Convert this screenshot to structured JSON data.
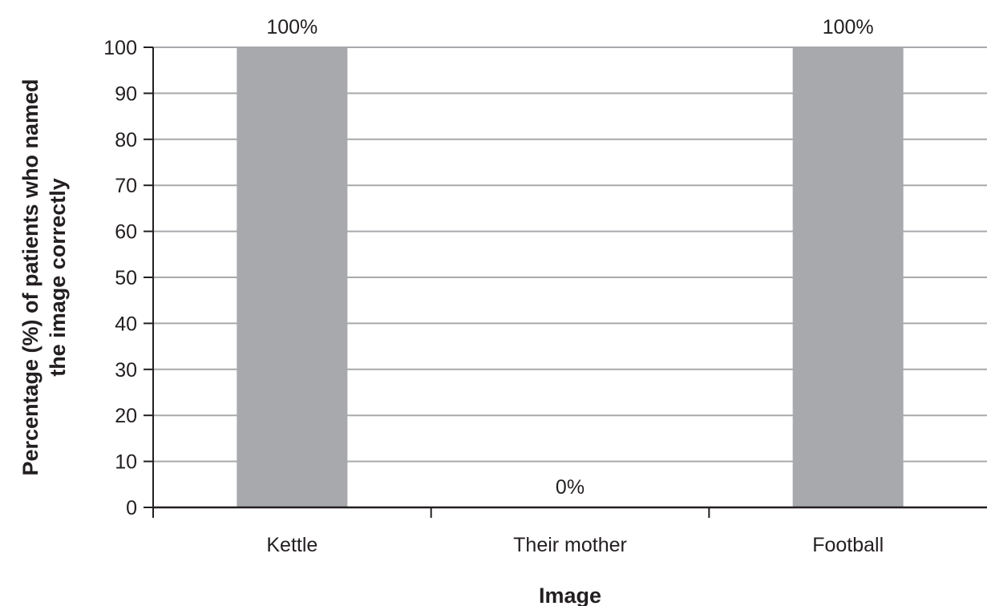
{
  "chart_data": {
    "type": "bar",
    "categories": [
      "Kettle",
      "Their mother",
      "Football"
    ],
    "values": [
      100,
      0,
      100
    ],
    "data_labels": [
      "100%",
      "0%",
      "100%"
    ],
    "title": "",
    "xlabel": "Image",
    "ylabel_lines": [
      "Percentage (%) of patients who named",
      "the image correctly"
    ],
    "ylim": [
      0,
      100
    ],
    "y_ticks": [
      0,
      10,
      20,
      30,
      40,
      50,
      60,
      70,
      80,
      90,
      100
    ],
    "grid": true,
    "legend": "none",
    "colors": {
      "bar": "#a7a9ac",
      "gridline": "#a7a9ac",
      "axis": "#231f20",
      "text": "#231f20"
    }
  }
}
